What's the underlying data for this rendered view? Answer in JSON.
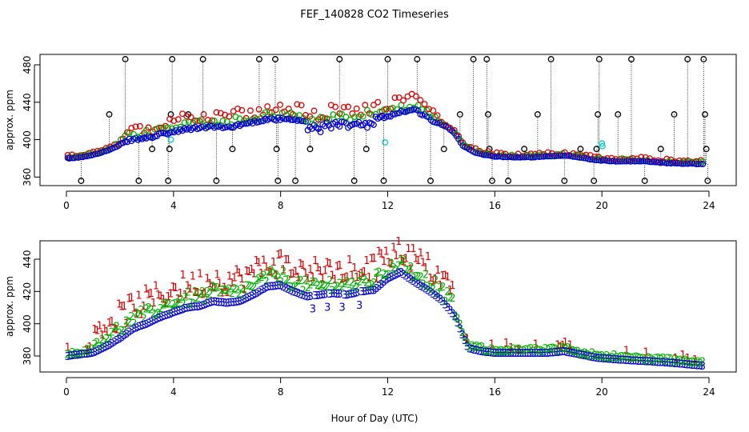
{
  "title": "FEF_140828  CO2 Timeseries",
  "xlabel": "Hour of Day (UTC)",
  "colors": {
    "black": "#000000",
    "red": "#e00000",
    "green": "#00b000",
    "blue": "#0000d0",
    "cyan": "#00d0d0"
  },
  "chart_data": [
    {
      "type": "scatter",
      "panel": "top",
      "ylabel": "approx. ppm",
      "xlim": [
        0,
        24
      ],
      "ylim": [
        356,
        488
      ],
      "xticks": [
        0,
        4,
        8,
        12,
        16,
        20,
        24
      ],
      "yticks": [
        360,
        400,
        440,
        480
      ],
      "knots": [
        [
          0,
          380
        ],
        [
          0.5,
          381
        ],
        [
          1,
          384
        ],
        [
          1.5,
          388
        ],
        [
          2,
          394
        ],
        [
          2.4,
          400
        ],
        [
          2.8,
          401
        ],
        [
          3.2,
          403
        ],
        [
          3.6,
          406
        ],
        [
          4,
          408
        ],
        [
          4.5,
          411
        ],
        [
          5,
          413
        ],
        [
          5.5,
          414
        ],
        [
          6,
          413
        ],
        [
          6.5,
          416
        ],
        [
          7,
          419
        ],
        [
          7.5,
          422
        ],
        [
          8,
          422
        ],
        [
          8.5,
          421
        ],
        [
          9,
          418
        ],
        [
          9.5,
          417
        ],
        [
          10,
          420
        ],
        [
          10.5,
          419
        ],
        [
          11,
          421
        ],
        [
          11.5,
          423
        ],
        [
          12,
          425
        ],
        [
          12.5,
          430
        ],
        [
          13,
          432
        ],
        [
          13.4,
          426
        ],
        [
          13.8,
          418
        ],
        [
          14.2,
          414
        ],
        [
          14.5,
          407
        ],
        [
          14.8,
          394
        ],
        [
          15.2,
          387
        ],
        [
          15.6,
          384
        ],
        [
          16,
          382
        ],
        [
          17,
          381
        ],
        [
          18,
          382
        ],
        [
          18.6,
          383
        ],
        [
          19.2,
          381
        ],
        [
          19.8,
          378
        ],
        [
          20.5,
          377
        ],
        [
          21.5,
          377
        ],
        [
          22.5,
          375
        ],
        [
          23.8,
          374
        ]
      ],
      "black_spikes": [
        {
          "x": 0.1,
          "y": 380
        },
        {
          "x": 0.55,
          "y": 356
        },
        {
          "x": 1.6,
          "y": 427
        },
        {
          "x": 2.2,
          "y": 486
        },
        {
          "x": 2.7,
          "y": 356
        },
        {
          "x": 3.2,
          "y": 390
        },
        {
          "x": 3.8,
          "y": 356
        },
        {
          "x": 3.85,
          "y": 390
        },
        {
          "x": 3.9,
          "y": 427
        },
        {
          "x": 3.95,
          "y": 486
        },
        {
          "x": 4.55,
          "y": 427
        },
        {
          "x": 5.1,
          "y": 486
        },
        {
          "x": 5.6,
          "y": 356
        },
        {
          "x": 6.2,
          "y": 390
        },
        {
          "x": 7.2,
          "y": 486
        },
        {
          "x": 7.8,
          "y": 486
        },
        {
          "x": 7.85,
          "y": 390
        },
        {
          "x": 7.9,
          "y": 356
        },
        {
          "x": 8.55,
          "y": 356
        },
        {
          "x": 9.1,
          "y": 390
        },
        {
          "x": 10.2,
          "y": 486
        },
        {
          "x": 10.75,
          "y": 356
        },
        {
          "x": 11.2,
          "y": 390
        },
        {
          "x": 11.85,
          "y": 356
        },
        {
          "x": 12.0,
          "y": 486
        },
        {
          "x": 13.1,
          "y": 486
        },
        {
          "x": 13.6,
          "y": 356
        },
        {
          "x": 14.1,
          "y": 390
        },
        {
          "x": 14.7,
          "y": 427
        },
        {
          "x": 15.2,
          "y": 486
        },
        {
          "x": 15.7,
          "y": 486
        },
        {
          "x": 15.75,
          "y": 427
        },
        {
          "x": 15.8,
          "y": 390
        },
        {
          "x": 15.9,
          "y": 356
        },
        {
          "x": 16.5,
          "y": 356
        },
        {
          "x": 17.1,
          "y": 390
        },
        {
          "x": 17.6,
          "y": 427
        },
        {
          "x": 18.1,
          "y": 486
        },
        {
          "x": 18.6,
          "y": 356
        },
        {
          "x": 19.2,
          "y": 390
        },
        {
          "x": 19.7,
          "y": 356
        },
        {
          "x": 19.8,
          "y": 390
        },
        {
          "x": 19.85,
          "y": 427
        },
        {
          "x": 19.9,
          "y": 486
        },
        {
          "x": 20.6,
          "y": 427
        },
        {
          "x": 21.1,
          "y": 486
        },
        {
          "x": 21.6,
          "y": 356
        },
        {
          "x": 22.2,
          "y": 390
        },
        {
          "x": 22.7,
          "y": 427
        },
        {
          "x": 23.2,
          "y": 486
        },
        {
          "x": 23.8,
          "y": 486
        },
        {
          "x": 23.85,
          "y": 427
        },
        {
          "x": 23.9,
          "y": 390
        },
        {
          "x": 23.95,
          "y": 356
        }
      ],
      "cyan_points": [
        {
          "x": 3.9,
          "y": 400
        },
        {
          "x": 11.9,
          "y": 397
        },
        {
          "x": 20.0,
          "y": 396
        },
        {
          "x": 20.02,
          "y": 393
        }
      ]
    },
    {
      "type": "scatter",
      "panel": "bottom",
      "ylabel": "approx. ppm",
      "xlim": [
        0,
        24
      ],
      "ylim": [
        370,
        452
      ],
      "xticks": [
        0,
        4,
        8,
        12,
        16,
        20,
        24
      ],
      "yticks": [
        380,
        400,
        420,
        440
      ],
      "knots": [
        [
          0,
          380
        ],
        [
          0.5,
          381
        ],
        [
          1,
          382
        ],
        [
          1.5,
          386
        ],
        [
          2,
          391
        ],
        [
          2.5,
          397
        ],
        [
          3,
          400
        ],
        [
          3.5,
          404
        ],
        [
          4,
          407
        ],
        [
          4.5,
          410
        ],
        [
          5,
          411
        ],
        [
          5.5,
          414
        ],
        [
          6,
          413
        ],
        [
          6.5,
          414
        ],
        [
          7,
          418
        ],
        [
          7.5,
          423
        ],
        [
          8,
          424
        ],
        [
          8.5,
          420
        ],
        [
          9,
          417
        ],
        [
          9.5,
          418
        ],
        [
          10,
          419
        ],
        [
          10.5,
          418
        ],
        [
          11,
          420
        ],
        [
          11.5,
          421
        ],
        [
          12,
          428
        ],
        [
          12.5,
          432
        ],
        [
          13,
          426
        ],
        [
          13.5,
          421
        ],
        [
          14,
          415
        ],
        [
          14.5,
          405
        ],
        [
          15,
          385
        ],
        [
          15.5,
          383
        ],
        [
          16,
          382
        ],
        [
          17,
          382
        ],
        [
          18,
          382
        ],
        [
          18.6,
          383
        ],
        [
          19.2,
          381
        ],
        [
          19.8,
          379
        ],
        [
          20.5,
          378
        ],
        [
          21.5,
          377
        ],
        [
          22.5,
          376
        ],
        [
          23.8,
          374
        ]
      ],
      "series_labels": [
        "1",
        "2",
        "3"
      ]
    }
  ]
}
